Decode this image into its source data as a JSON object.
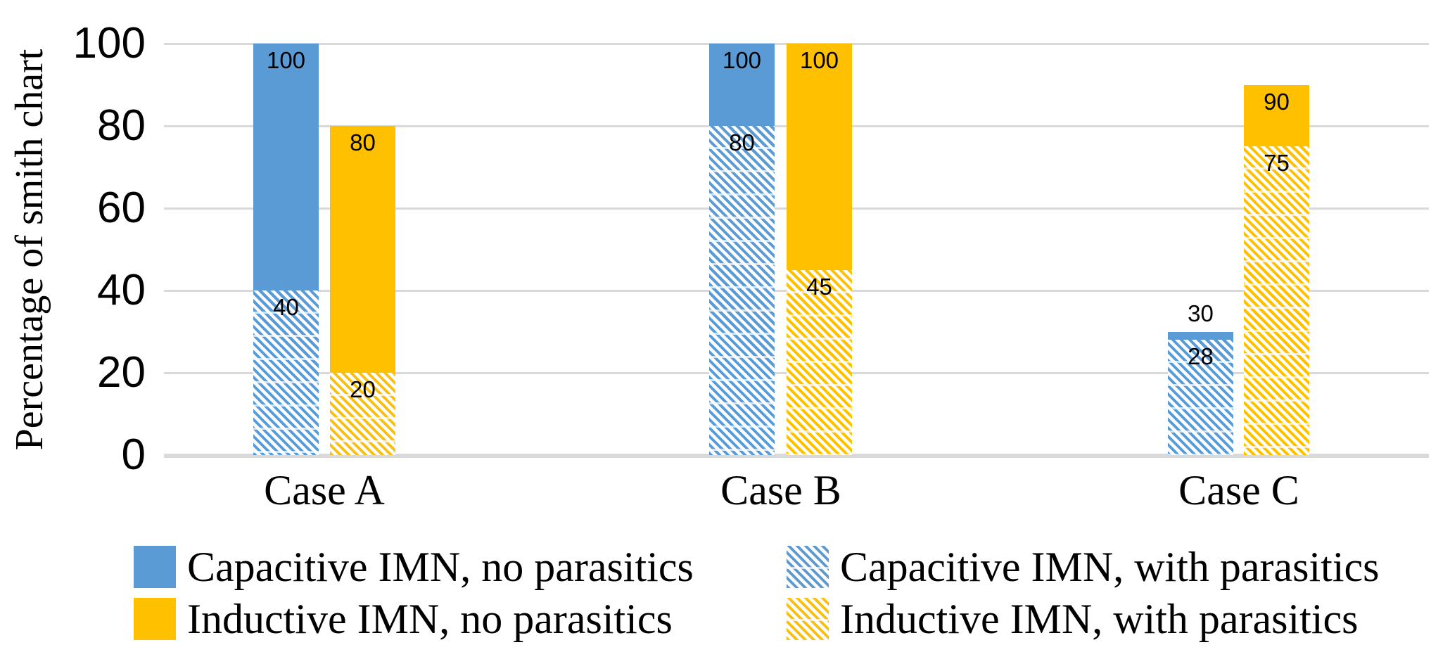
{
  "chart_data": {
    "type": "bar",
    "title": "",
    "ylabel": "Percentage of smith chart",
    "xlabel": "",
    "categories": [
      "Case A",
      "Case B",
      "Case C"
    ],
    "ylim": [
      0,
      100
    ],
    "yticks": [
      0,
      20,
      40,
      60,
      80,
      100
    ],
    "grid": true,
    "legend_position": "bottom",
    "bar_style": "solid total bar with diagonal-hatched overlay from zero",
    "series": [
      {
        "name": "Capacitive IMN, no parasitics",
        "color": "#5B9BD5",
        "pattern": "solid",
        "values": [
          100,
          100,
          30
        ]
      },
      {
        "name": "Capacitive IMN, with parasitics",
        "color": "#5B9BD5",
        "pattern": "diagonal-hatch",
        "values": [
          40,
          80,
          28
        ]
      },
      {
        "name": "Inductive IMN, no parasitics",
        "color": "#FFC000",
        "pattern": "solid",
        "values": [
          80,
          100,
          90
        ]
      },
      {
        "name": "Inductive IMN, with parasitics",
        "color": "#FFC000",
        "pattern": "diagonal-hatch",
        "values": [
          20,
          45,
          75
        ]
      }
    ],
    "data_labels_shown": true
  },
  "colors": {
    "capacitive_blue": "#5B9BD5",
    "inductive_gold": "#FFC000",
    "gridline": "#D9D9D9",
    "axis_line": "#D9D9D9",
    "label_text": "#000000",
    "background": "#FFFFFF"
  }
}
